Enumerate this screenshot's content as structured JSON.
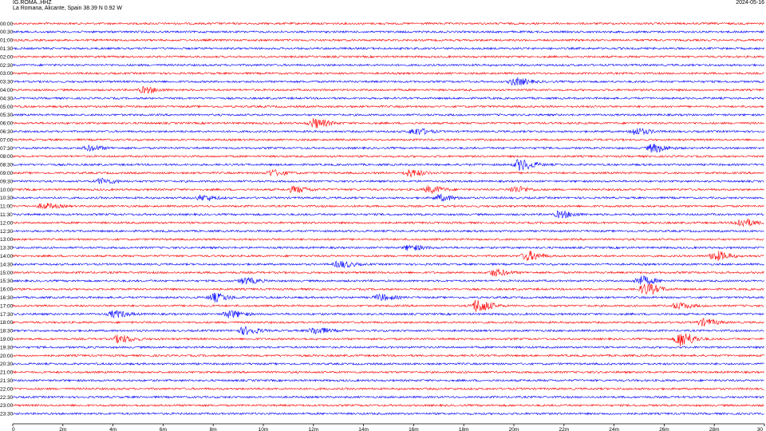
{
  "header": {
    "station": "IG.ROMA..HHZ",
    "location": "La Romana, Alicante, Spain  38.39 N 0.92 W",
    "date": "2024-05-16"
  },
  "chart_data": {
    "type": "line",
    "title": "IG.ROMA..HHZ",
    "subtitle": "La Romana, Alicante, Spain  38.39 N 0.92 W",
    "xlabel": "",
    "ylabel": "",
    "xlim": [
      0,
      30
    ],
    "x_ticks": [
      "0",
      "2m",
      "4m",
      "6m",
      "8m",
      "10m",
      "12m",
      "14m",
      "16m",
      "18m",
      "20m",
      "22m",
      "24m",
      "26m",
      "28m",
      "30"
    ],
    "row_labels": [
      "00:00",
      "00:30",
      "01:00",
      "01:30",
      "02:00",
      "02:30",
      "03:00",
      "03:30",
      "04:00",
      "04:30",
      "05:00",
      "05:30",
      "06:00",
      "06:30",
      "07:00",
      "07:30",
      "08:00",
      "08:30",
      "09:00",
      "09:30",
      "10:00",
      "10:30",
      "11:00",
      "11:30",
      "12:00",
      "12:30",
      "13:00",
      "13:30",
      "14:00",
      "14:30",
      "15:00",
      "15:30",
      "16:00",
      "16:30",
      "17:00",
      "17:30",
      "18:00",
      "18:30",
      "19:00",
      "19:30",
      "20:00",
      "20:30",
      "21:00",
      "21:30",
      "22:00",
      "22:30",
      "23:00",
      "23:30"
    ],
    "colors": [
      "#ff0000",
      "#0000ff"
    ],
    "grid": false,
    "events": [
      {
        "row": 7,
        "minute": 20.0,
        "amp": 2.0
      },
      {
        "row": 8,
        "minute": 5.2,
        "amp": 1.5
      },
      {
        "row": 12,
        "minute": 12.0,
        "amp": 2.5
      },
      {
        "row": 13,
        "minute": 16.0,
        "amp": 1.8
      },
      {
        "row": 13,
        "minute": 24.8,
        "amp": 1.8
      },
      {
        "row": 15,
        "minute": 3.0,
        "amp": 1.4
      },
      {
        "row": 15,
        "minute": 25.5,
        "amp": 2.2
      },
      {
        "row": 17,
        "minute": 20.2,
        "amp": 3.0
      },
      {
        "row": 18,
        "minute": 10.3,
        "amp": 1.5
      },
      {
        "row": 18,
        "minute": 15.8,
        "amp": 1.8
      },
      {
        "row": 19,
        "minute": 3.5,
        "amp": 1.4
      },
      {
        "row": 20,
        "minute": 11.2,
        "amp": 1.6
      },
      {
        "row": 20,
        "minute": 16.6,
        "amp": 1.8
      },
      {
        "row": 20,
        "minute": 20.0,
        "amp": 1.6
      },
      {
        "row": 21,
        "minute": 7.5,
        "amp": 1.4
      },
      {
        "row": 21,
        "minute": 17.0,
        "amp": 1.6
      },
      {
        "row": 22,
        "minute": 1.2,
        "amp": 1.4
      },
      {
        "row": 23,
        "minute": 21.8,
        "amp": 1.8
      },
      {
        "row": 24,
        "minute": 29.0,
        "amp": 2.2
      },
      {
        "row": 27,
        "minute": 15.8,
        "amp": 1.4
      },
      {
        "row": 28,
        "minute": 20.5,
        "amp": 2.5
      },
      {
        "row": 28,
        "minute": 28.0,
        "amp": 2.5
      },
      {
        "row": 29,
        "minute": 13.0,
        "amp": 1.8
      },
      {
        "row": 30,
        "minute": 19.2,
        "amp": 1.8
      },
      {
        "row": 31,
        "minute": 9.2,
        "amp": 1.6
      },
      {
        "row": 31,
        "minute": 25.0,
        "amp": 2.5
      },
      {
        "row": 32,
        "minute": 25.2,
        "amp": 3.0
      },
      {
        "row": 33,
        "minute": 8.0,
        "amp": 2.2
      },
      {
        "row": 33,
        "minute": 14.6,
        "amp": 1.6
      },
      {
        "row": 34,
        "minute": 18.5,
        "amp": 3.5
      },
      {
        "row": 34,
        "minute": 26.5,
        "amp": 1.6
      },
      {
        "row": 35,
        "minute": 4.0,
        "amp": 1.8
      },
      {
        "row": 35,
        "minute": 8.6,
        "amp": 2.0
      },
      {
        "row": 36,
        "minute": 27.5,
        "amp": 1.8
      },
      {
        "row": 37,
        "minute": 9.2,
        "amp": 2.0
      },
      {
        "row": 37,
        "minute": 12.0,
        "amp": 1.8
      },
      {
        "row": 38,
        "minute": 4.2,
        "amp": 2.0
      },
      {
        "row": 38,
        "minute": 26.6,
        "amp": 4.0
      }
    ]
  }
}
